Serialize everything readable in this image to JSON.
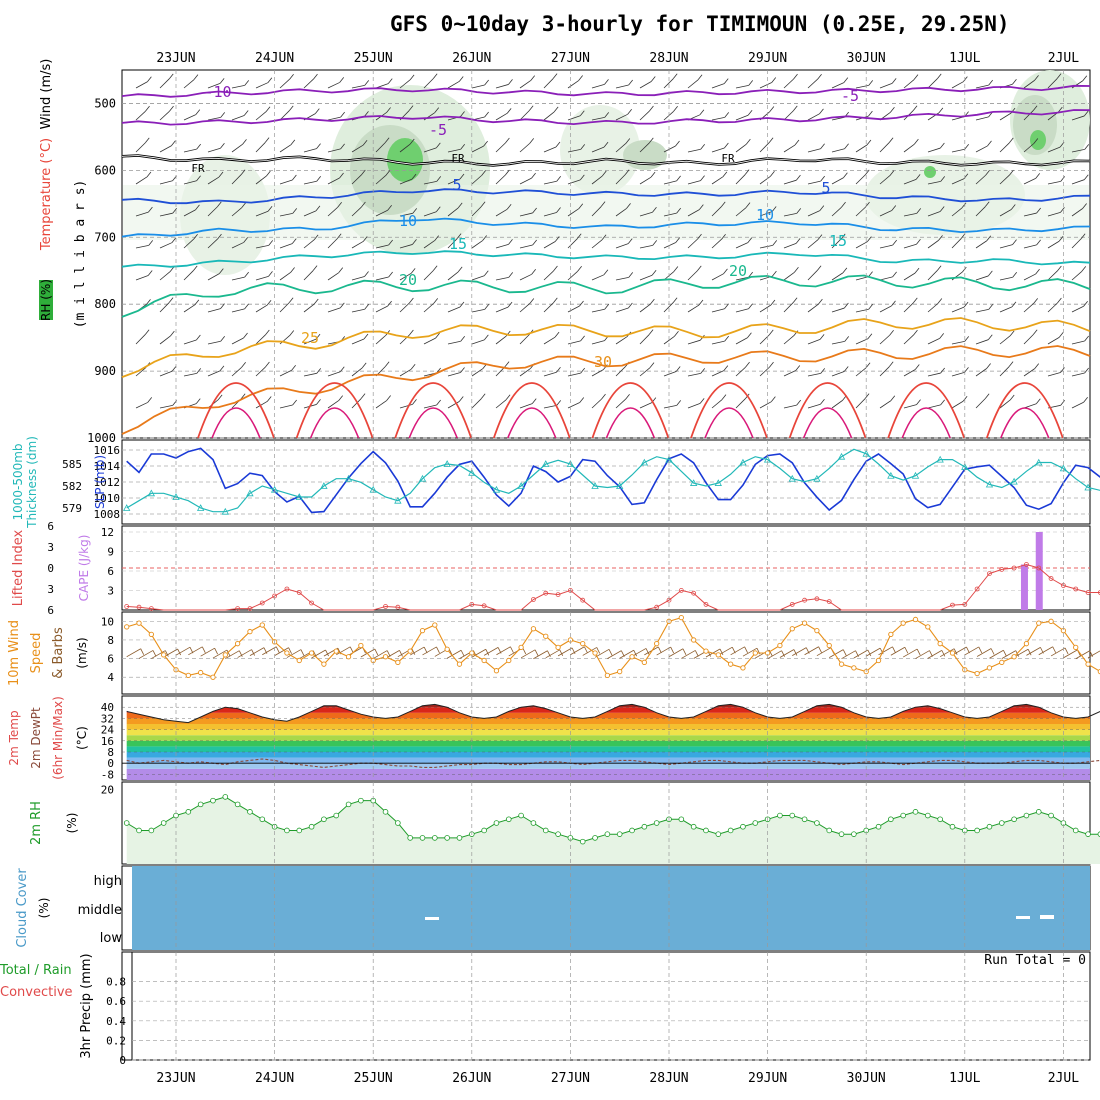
{
  "title": "GFS 0~10day 3-hourly for TIMIMOUN (0.25E, 29.25N)",
  "dates": [
    "23JUN",
    "24JUN",
    "25JUN",
    "26JUN",
    "27JUN",
    "28JUN",
    "29JUN",
    "30JUN",
    "1JUL",
    "2JUL"
  ],
  "chart_data": [
    {
      "type": "heatmap",
      "name": "pressure-time",
      "ylabels": [
        "Temperature (°C)",
        "Wind (m/s)",
        "RH (%)",
        "(m i l l i b a r s)"
      ],
      "y_ticks": [
        500,
        600,
        700,
        800,
        900,
        1000
      ],
      "ylim": [
        450,
        1000
      ],
      "isotherm_labels": [
        "-10",
        "-5",
        "FR",
        "FR",
        "FR",
        "5",
        "5",
        "10",
        "10",
        "15",
        "15",
        "20",
        "20",
        "25",
        "30"
      ],
      "isotherms": [
        {
          "label": "-10",
          "color": "#8a1fb8",
          "p": [
            490,
            485,
            481,
            479,
            483,
            486,
            484,
            482,
            480,
            478,
            476
          ]
        },
        {
          "label": "-5",
          "color": "#8a1fb8",
          "p": [
            530,
            528,
            524,
            520,
            526,
            529,
            526,
            524,
            520,
            515,
            512
          ]
        },
        {
          "label": "FR",
          "color": "#000000",
          "p": [
            580,
            585,
            582,
            588,
            590,
            586,
            590,
            583,
            588,
            590,
            588
          ]
        },
        {
          "label": "5",
          "color": "#1f4fd6",
          "p": [
            645,
            648,
            640,
            630,
            632,
            635,
            636,
            632,
            640,
            645,
            640
          ]
        },
        {
          "label": "10",
          "color": "#1a8ee8",
          "p": [
            700,
            690,
            688,
            672,
            680,
            685,
            680,
            678,
            688,
            690,
            686
          ]
        },
        {
          "label": "15",
          "color": "#19b8b8",
          "p": [
            745,
            738,
            728,
            722,
            726,
            730,
            730,
            724,
            736,
            735,
            740
          ]
        },
        {
          "label": "20",
          "color": "#1ab88e",
          "p": [
            810,
            780,
            775,
            772,
            774,
            776,
            768,
            765,
            766,
            770,
            772
          ]
        },
        {
          "label": "25",
          "color": "#e8a31a",
          "p": [
            900,
            870,
            858,
            842,
            838,
            840,
            842,
            836,
            828,
            830,
            835
          ]
        },
        {
          "label": "30",
          "color": "#e87a1a",
          "p": [
            985,
            945,
            925,
            905,
            888,
            885,
            880,
            878,
            874,
            870,
            872
          ]
        }
      ]
    },
    {
      "type": "line",
      "name": "thickness-slp",
      "ylabels": [
        "1000-500mb",
        "Thickness (dm)",
        "SLP (mb)"
      ],
      "left_ticks": [
        579,
        582,
        585
      ],
      "right_ticks": [
        1008,
        1010,
        1012,
        1014,
        1016
      ],
      "series": [
        {
          "name": "SLP (mb)",
          "color": "#1a3ad6",
          "values": [
            1014.6,
            1013.2,
            1015.5,
            1015.5,
            1015,
            1015.8,
            1016.2,
            1014.8,
            1011.2,
            1011.8,
            1013.1,
            1012.8,
            1010.8,
            1009.5,
            1010.2,
            1008.2,
            1008.3,
            1010.4,
            1012.5,
            1014.3,
            1015.8,
            1014.4,
            1012.1,
            1008.9,
            1008.9,
            1010.6,
            1012.6,
            1014.2,
            1014.6,
            1012.6,
            1010.4,
            1009,
            1010.6,
            1014,
            1013.3,
            1012,
            1012.7,
            1014.8,
            1014.6,
            1012.8,
            1011.4,
            1009.2,
            1009.4,
            1012.3,
            1014.9,
            1015.5,
            1014.4,
            1011.9,
            1009.8,
            1009.8,
            1011.6,
            1014.2,
            1015.3,
            1015.5,
            1014.4,
            1011.9,
            1010.1,
            1008.5,
            1009.7,
            1012.3,
            1014.6,
            1015.5,
            1014.3,
            1013,
            1009.9,
            1008.8,
            1009.2,
            1011.4,
            1013.6,
            1013.9,
            1014.1,
            1012.7,
            1011.3,
            1009.1,
            1008.6,
            1009.3,
            1011.9,
            1014.1,
            1013.8,
            1012.6,
            1010.2,
            1009.7,
            1010.5
          ]
        },
        {
          "name": "Thickness (dm)",
          "color": "#22b8b8",
          "values": [
            579,
            580,
            581,
            581,
            580.5,
            580,
            579,
            578.5,
            578.5,
            579,
            581,
            582,
            581.5,
            581,
            580.5,
            580.5,
            582,
            583,
            583,
            582.5,
            581.5,
            580.5,
            580,
            581,
            583,
            584.5,
            585,
            584.8,
            583.8,
            582.5,
            581.5,
            581,
            582,
            583.5,
            585,
            585.5,
            585,
            583.5,
            582,
            581.8,
            582,
            583.5,
            585.2,
            586,
            585.6,
            584,
            582.4,
            582,
            582.4,
            583.6,
            585.2,
            586,
            585.6,
            584.4,
            583,
            582.6,
            583,
            584.4,
            586,
            587,
            586.4,
            585,
            583.4,
            582.8,
            583.4,
            584.6,
            585.6,
            585.6,
            584.6,
            583.2,
            582.2,
            581.8,
            582.6,
            584,
            585.2,
            585.2,
            584.4,
            583,
            581.8,
            581.4,
            581.8,
            582.2,
            582.6
          ]
        }
      ]
    },
    {
      "type": "bar",
      "name": "lifted-index-cape",
      "ylabels": [
        "Lifted Index",
        "CAPE (J/kg)"
      ],
      "left_ticks": [
        6,
        3,
        0,
        -3,
        -6
      ],
      "right_ticks": [
        3,
        6,
        9,
        12
      ],
      "li_ylim": [
        6,
        -6
      ],
      "cape_ylim": [
        0,
        12
      ],
      "li_values": [
        5.5,
        5.6,
        5.8,
        6,
        6,
        6,
        6,
        6,
        6,
        5.8,
        5.8,
        5,
        4,
        3,
        3.5,
        5,
        6,
        6,
        6,
        6,
        6,
        5.5,
        5.6,
        6,
        6,
        6,
        6,
        6,
        5.2,
        5.4,
        6,
        6,
        6,
        4.5,
        3.6,
        3.8,
        3.2,
        4.6,
        6,
        6,
        6,
        6,
        6,
        5.6,
        4.6,
        3.2,
        3.6,
        5.2,
        6,
        6,
        6,
        6,
        6,
        6,
        5.2,
        4.6,
        4.4,
        4.8,
        6,
        6,
        6,
        6,
        6,
        6,
        6,
        6,
        6,
        5.3,
        5.2,
        6,
        6,
        6,
        6,
        6,
        6,
        4.4,
        3.4,
        2.6,
        1.8,
        3.2,
        4.6,
        6,
        6
      ],
      "li_tail": [
        3,
        0.8,
        0.2,
        0,
        -0.5,
        0,
        1.5,
        2.5,
        3,
        3.5,
        3.5,
        2,
        3,
        3
      ],
      "cape_bars": [
        {
          "day_offset": 8.6,
          "value": 7
        },
        {
          "day_offset": 8.75,
          "value": 12
        }
      ]
    },
    {
      "type": "line",
      "name": "wind-10m",
      "ylabels": [
        "10m Wind",
        "Speed",
        "& Barbs",
        "(m/s)"
      ],
      "y_ticks": [
        4,
        6,
        8,
        10
      ],
      "ylim": [
        2.2,
        11
      ],
      "series": [
        {
          "name": "10m Wind Speed",
          "color": "#e8901a",
          "values": [
            9.4,
            9.8,
            8.6,
            6.4,
            4.8,
            4.2,
            4.5,
            4.0,
            6.4,
            7.6,
            8.9,
            9.6,
            7.8,
            6.6,
            5.8,
            6.6,
            5.4,
            6.8,
            6.2,
            7.4,
            5.8,
            6.2,
            5.6,
            6.8,
            9.0,
            9.6,
            7.0,
            5.4,
            6.6,
            5.8,
            4.7,
            5.8,
            7.2,
            9.2,
            8.4,
            7.2,
            8.0,
            7.6,
            6.6,
            4.2,
            4.6,
            6.2,
            5.6,
            7.6,
            10.0,
            10.4,
            8.0,
            6.8,
            6.4,
            5.4,
            5.0,
            6.6,
            6.6,
            7.4,
            9.2,
            9.8,
            9.0,
            7.4,
            5.4,
            5.0,
            4.6,
            5.8,
            8.6,
            9.8,
            10.2,
            9.4,
            7.6,
            6.6,
            4.8,
            4.4,
            5.0,
            5.6,
            6.2,
            7.6,
            9.8,
            10.0,
            9.0,
            7.2,
            5.4,
            4.6,
            3.0,
            4.4,
            5.0
          ]
        }
      ]
    },
    {
      "type": "area",
      "name": "temp-dewpoint",
      "ylabels": [
        "2m Temp",
        "2m DewPt",
        "(6hr Min/Max)",
        "(°C)"
      ],
      "y_ticks": [
        -8,
        0,
        8,
        16,
        24,
        32,
        40
      ],
      "tick_labels": [
        "-8",
        "0",
        "8",
        "16",
        "24",
        "32",
        "40"
      ],
      "ylim": [
        -12,
        48
      ],
      "series": [
        {
          "name": "2m Temp",
          "values": [
            37,
            35,
            33,
            31,
            30,
            29,
            33,
            37,
            40,
            39,
            36,
            33,
            31,
            30,
            33,
            37,
            41,
            41,
            38,
            35,
            33,
            32,
            33,
            37,
            41,
            42,
            40,
            36,
            33,
            32,
            33,
            37,
            40,
            41,
            39,
            36,
            33,
            32,
            33,
            37,
            41,
            42,
            40,
            36,
            33,
            32,
            33,
            37,
            41,
            42,
            40,
            36,
            33,
            32,
            33,
            37,
            41,
            42,
            40,
            36,
            33,
            32,
            33,
            37,
            40,
            41,
            39,
            36,
            33,
            32,
            33,
            37,
            41,
            42,
            40,
            36,
            33,
            32,
            33,
            37,
            40,
            41,
            40,
            36,
            33
          ]
        },
        {
          "name": "2m DewPt",
          "values": [
            2,
            0,
            1,
            2,
            1,
            0,
            1,
            0,
            -1,
            1,
            2,
            3,
            2,
            0,
            -1,
            -2,
            -3,
            -2,
            -1,
            0,
            0,
            -1,
            -2,
            -2,
            -3,
            -3,
            -2,
            -1,
            -1,
            0,
            0,
            -1,
            -1,
            0,
            1,
            1,
            0,
            -1,
            0,
            1,
            2,
            2,
            1,
            0,
            -1,
            0,
            1,
            2,
            2,
            1,
            0,
            0,
            1,
            2,
            2,
            2,
            1,
            0,
            -1,
            0,
            1,
            1,
            0,
            -1,
            0,
            1,
            2,
            2,
            1,
            0,
            0,
            0,
            1,
            2,
            2,
            1,
            0,
            0,
            1,
            2,
            2,
            1,
            1
          ]
        }
      ]
    },
    {
      "type": "line",
      "name": "rh-2m",
      "ylabels": [
        "2m RH",
        "(%)"
      ],
      "y_ticks": [
        20
      ],
      "ylim": [
        0,
        22
      ],
      "series": [
        {
          "name": "2m RH",
          "color": "#1f9c2a",
          "values": [
            11,
            9,
            9,
            11,
            13,
            14,
            16,
            17,
            18,
            16,
            14,
            12,
            10,
            9,
            9,
            10,
            12,
            13,
            16,
            17,
            17,
            14,
            11,
            7,
            7,
            7,
            7,
            7,
            8,
            9,
            11,
            12,
            13,
            11,
            9,
            8,
            7,
            6,
            7,
            8,
            8,
            9,
            10,
            11,
            12,
            12,
            10,
            9,
            8,
            9,
            10,
            11,
            12,
            13,
            13,
            12,
            11,
            9,
            8,
            8,
            9,
            10,
            12,
            13,
            14,
            13,
            12,
            10,
            9,
            9,
            10,
            11,
            12,
            13,
            14,
            13,
            11,
            9,
            8,
            8,
            9,
            10,
            11
          ]
        }
      ]
    },
    {
      "type": "heatmap",
      "name": "cloud-cover",
      "ylabels": [
        "Cloud Cover",
        "(%)"
      ],
      "levels": [
        "high",
        "middle",
        "low"
      ],
      "color": "#6aaed6"
    },
    {
      "type": "bar",
      "name": "precip",
      "ylabels": [
        "Total / Rain",
        "Convective",
        "3hr Precip (mm)"
      ],
      "y_ticks": [
        0,
        0.2,
        0.4,
        0.6,
        0.8
      ],
      "tick_labels": [
        "0",
        "0.2",
        "0.4",
        "0.6",
        "0.8"
      ],
      "ylim": [
        0,
        1
      ],
      "run_total": "Run Total = 0",
      "values": []
    }
  ]
}
